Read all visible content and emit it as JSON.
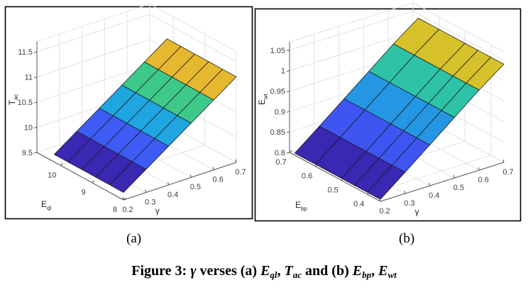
{
  "chart_data": [
    {
      "type": "surface3d",
      "panel_label": "(a)",
      "xlabel": "γ",
      "ylabel": "E",
      "ylabel_sub": "ql",
      "zlabel": "T",
      "zlabel_sub": "ac",
      "x_ticks": [
        "0.2",
        "0.3",
        "0.4",
        "0.5",
        "0.6",
        "0.7"
      ],
      "y_ticks": [
        "8",
        "9",
        "10"
      ],
      "z_ticks": [
        "9.5",
        "10",
        "10.5",
        "11",
        "11.5"
      ],
      "xlim": [
        0.2,
        0.7
      ],
      "ylim": [
        8,
        10.75
      ],
      "zlim": [
        9.5,
        11.6
      ],
      "x": [
        0.2,
        0.3,
        0.4,
        0.5,
        0.6,
        0.7
      ],
      "y": [
        8,
        8.44,
        8.88,
        9.32,
        9.76,
        10.2
      ],
      "z_at_x": [
        9.65,
        9.96,
        10.27,
        10.58,
        10.89,
        11.2
      ],
      "grid": true,
      "colors": [
        "#3a27b2",
        "#3d5cf5",
        "#1fa5e0",
        "#3cc98a",
        "#e6b830"
      ]
    },
    {
      "type": "surface3d",
      "panel_label": "(b)",
      "xlabel": "γ",
      "ylabel": "E",
      "ylabel_sub": "bp",
      "zlabel": "E",
      "zlabel_sub": "wt",
      "x_ticks": [
        "0.2",
        "0.3",
        "0.4",
        "0.5",
        "0.6",
        "0.7"
      ],
      "y_ticks": [
        "0.4",
        "0.5",
        "0.6",
        "0.7"
      ],
      "z_ticks": [
        "0.8",
        "0.85",
        "0.9",
        "0.95",
        "1",
        "1.05"
      ],
      "xlim": [
        0.2,
        0.7
      ],
      "ylim": [
        0.35,
        0.7
      ],
      "zlim": [
        0.8,
        1.06
      ],
      "x": [
        0.2,
        0.3,
        0.4,
        0.5,
        0.6,
        0.7
      ],
      "y": [
        0.35,
        0.4,
        0.45,
        0.5,
        0.6,
        0.68
      ],
      "z_at_x": [
        0.805,
        0.852,
        0.9,
        0.948,
        0.996,
        1.04
      ],
      "grid": true,
      "colors": [
        "#3a27b2",
        "#3f55f2",
        "#2596e3",
        "#2ec2a6",
        "#d6c12a"
      ]
    }
  ],
  "captions": {
    "a": "(a)",
    "b": "(b)",
    "figure_prefix": "Figure 3:",
    "gamma": "γ",
    "verses_a": "verses (a)",
    "eql_e": "E",
    "eql_sub": "ql",
    "tac_t": "T",
    "tac_sub": "ac",
    "and_b": "and (b)",
    "ebp_e": "E",
    "ebp_sub": "bp",
    "ewt_e": "E",
    "ewt_sub": "wt",
    "comma": ","
  }
}
